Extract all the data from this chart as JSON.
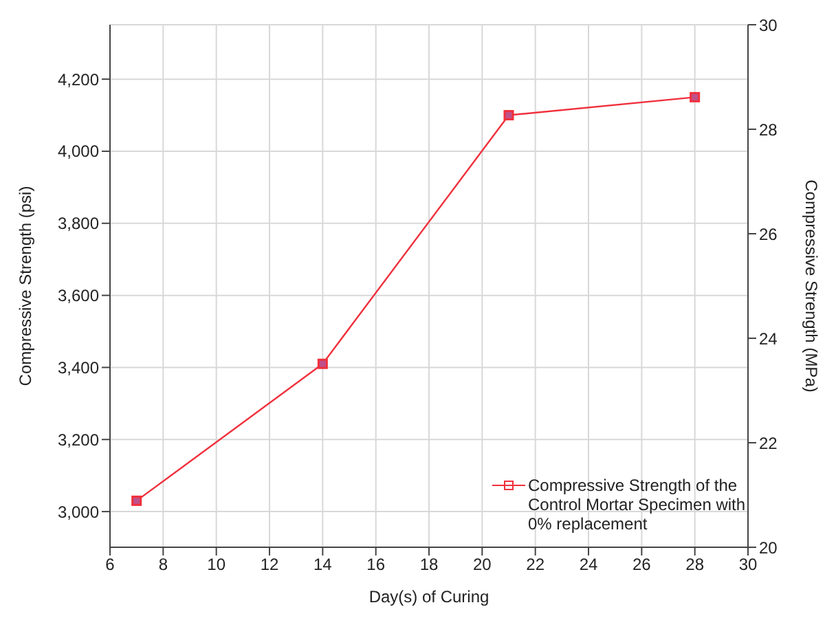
{
  "chart_data": {
    "type": "line",
    "xlabel": "Day(s) of Curing",
    "ylabel": "Compressive Strength (psi)",
    "y2label": "Compressive Strength (MPa)",
    "x": [
      7,
      14,
      21,
      28
    ],
    "series": [
      {
        "name": "Compressive Strength of the Control Mortar Specimen with 0% replacement",
        "color": "#f0303c",
        "values": [
          3030,
          3410,
          4100,
          4150
        ]
      }
    ],
    "xlim": [
      6,
      30
    ],
    "xticks": [
      6,
      8,
      10,
      12,
      14,
      16,
      18,
      20,
      22,
      24,
      26,
      28,
      30
    ],
    "ylim": [
      2901,
      4351
    ],
    "yticks": [
      {
        "value": 3000,
        "label": "3,000"
      },
      {
        "value": 3200,
        "label": "3,200"
      },
      {
        "value": 3400,
        "label": "3,400"
      },
      {
        "value": 3600,
        "label": "3,600"
      },
      {
        "value": 3800,
        "label": "3,800"
      },
      {
        "value": 4000,
        "label": "4,000"
      },
      {
        "value": 4200,
        "label": "4,200"
      }
    ],
    "y2lim": [
      20,
      30
    ],
    "y2ticks": [
      20,
      22,
      24,
      26,
      28,
      30
    ],
    "grid": true,
    "legend": "bottom right",
    "marker": "square",
    "line_style": "solid"
  }
}
